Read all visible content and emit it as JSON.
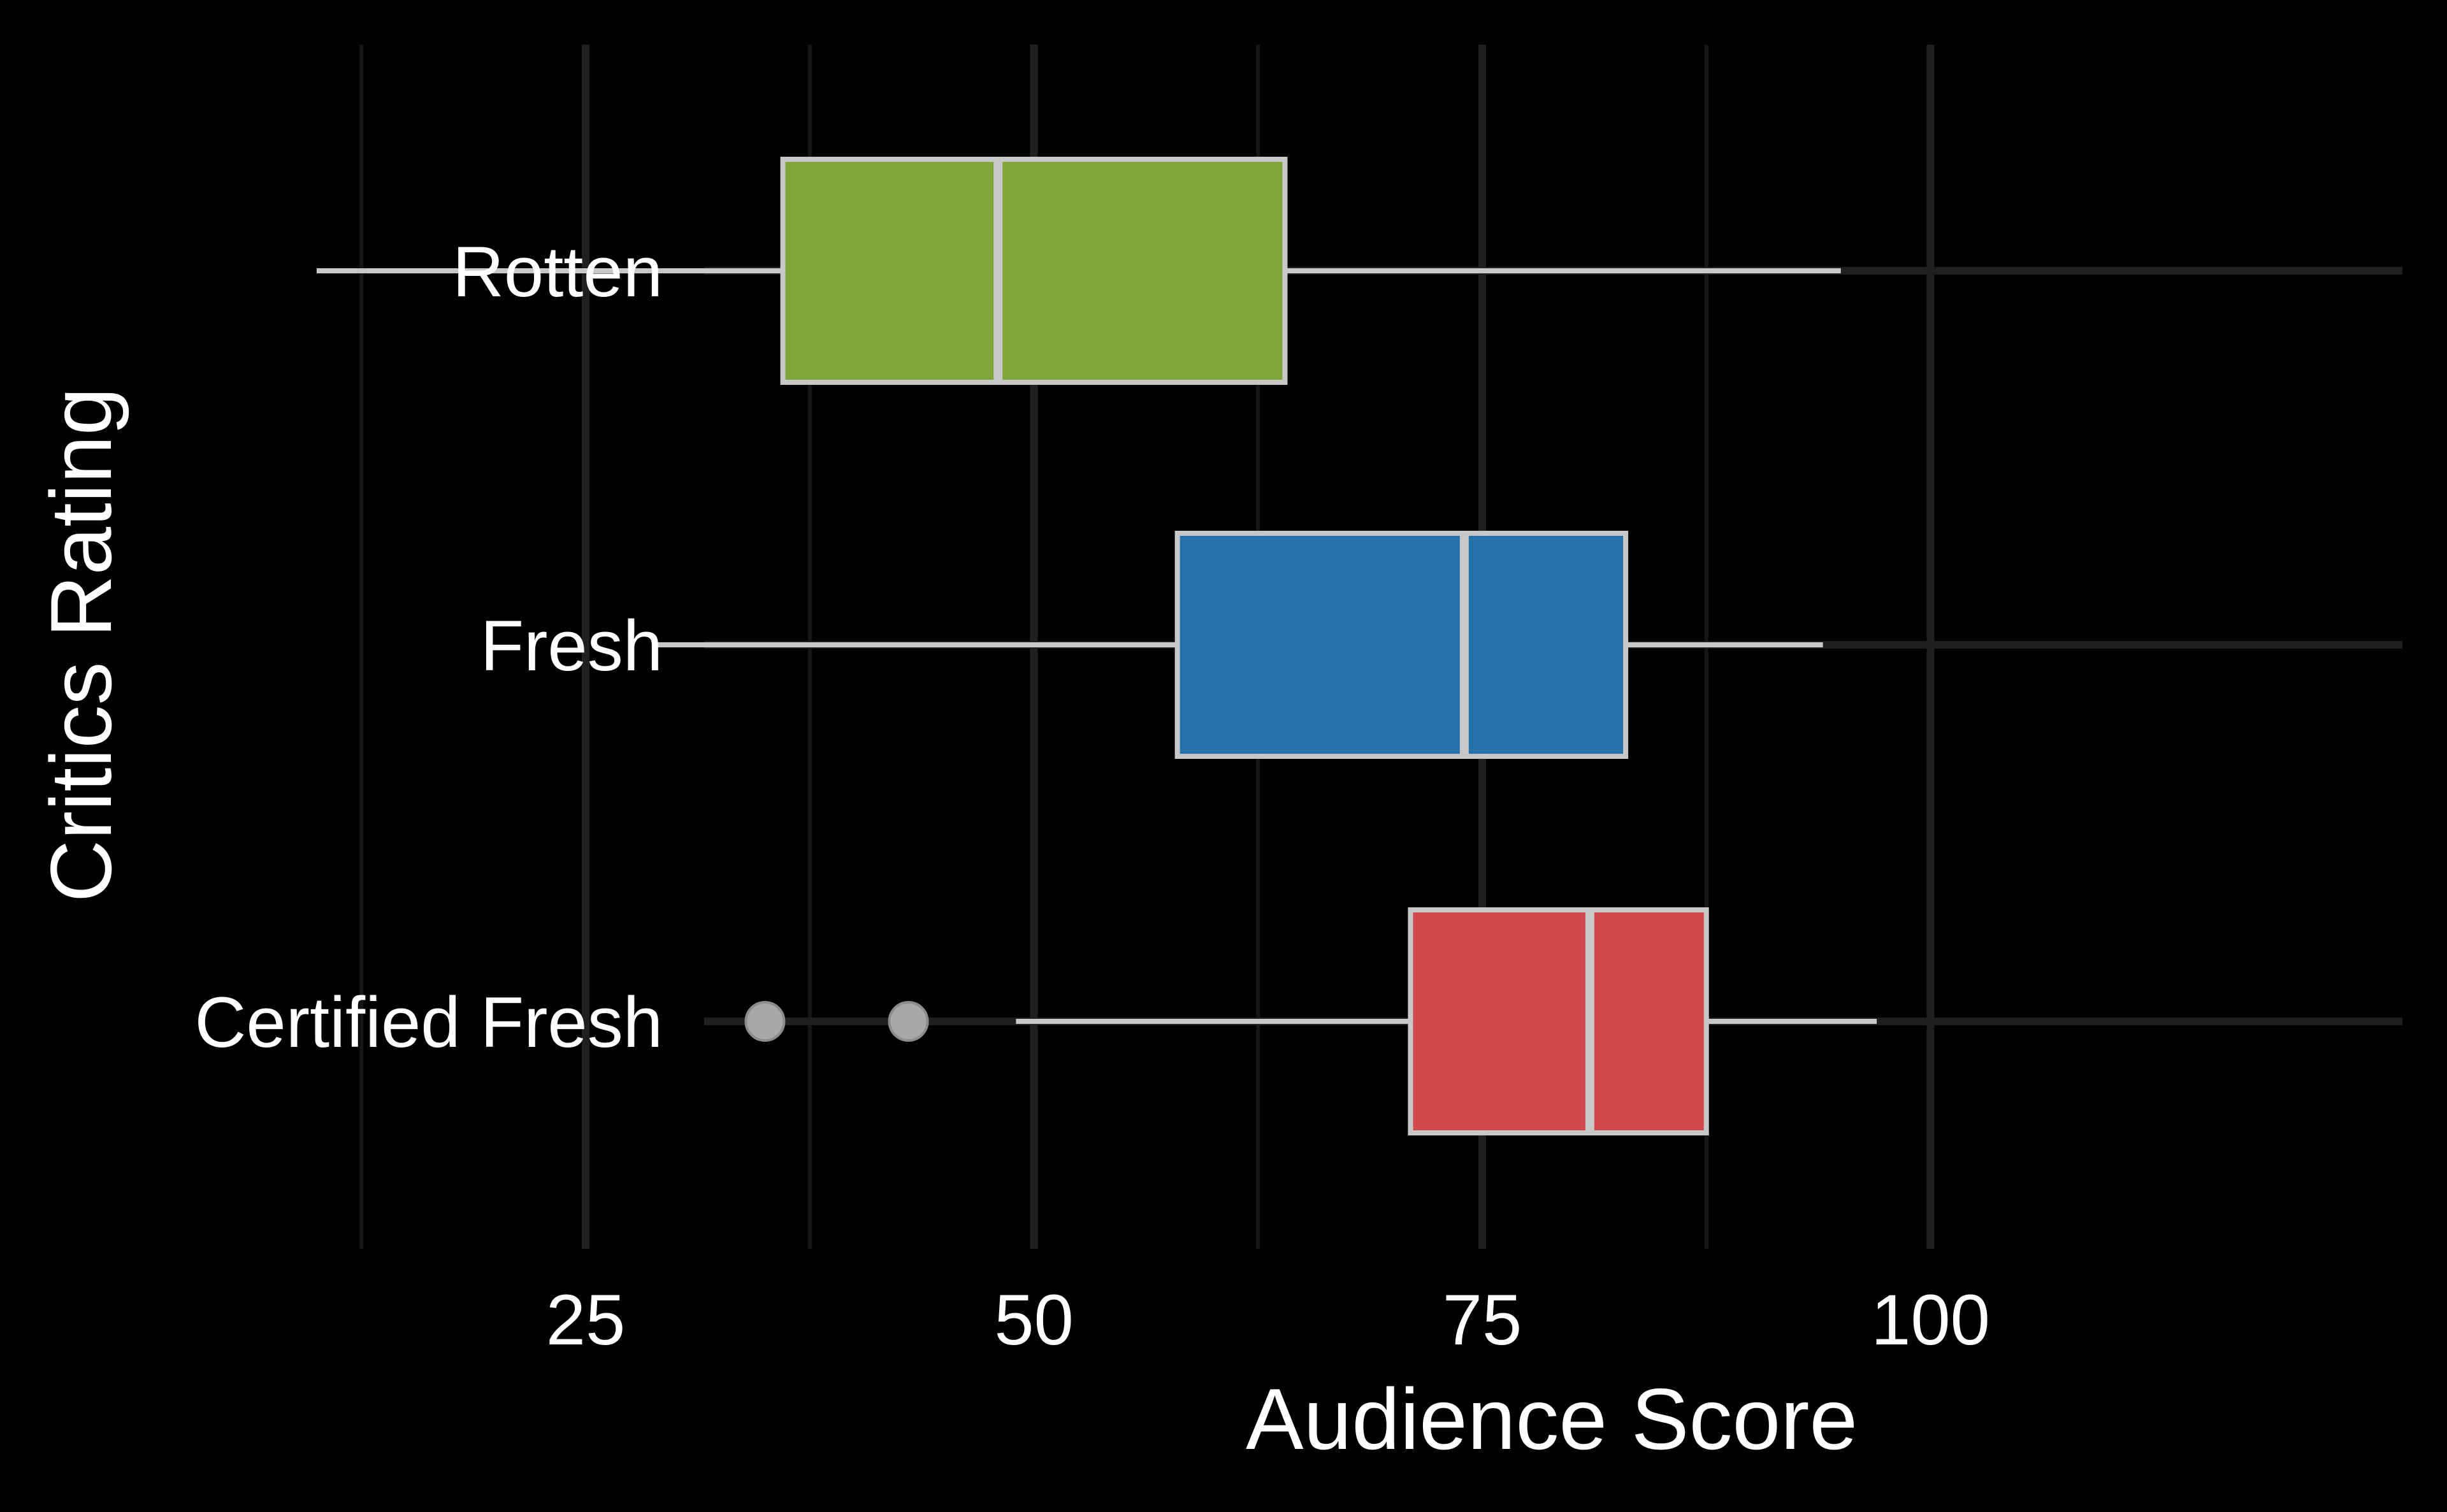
{
  "chart_data": {
    "type": "boxplot",
    "orientation": "horizontal",
    "xlabel": "Audience Score",
    "ylabel": "Critics Rating",
    "xlim": [
      5.5,
      101
    ],
    "x_ticks": [
      25,
      50,
      75,
      100
    ],
    "x_tick_labels": [
      "25",
      "50",
      "75",
      "100"
    ],
    "x_minor_gridlines": [
      12.5,
      37.5,
      62.5,
      87.5
    ],
    "grid": true,
    "legend": "none",
    "background": "#000000",
    "categories": [
      "Rotten",
      "Fresh",
      "Certified Fresh"
    ],
    "series": [
      {
        "category": "Rotten",
        "color": "#80a53a",
        "whisker_low": 10,
        "q1": 36,
        "median": 48,
        "q3": 64,
        "whisker_high": 95,
        "outliers": []
      },
      {
        "category": "Fresh",
        "color": "#2673ab",
        "whisker_low": 29,
        "q1": 58,
        "median": 74,
        "q3": 83,
        "whisker_high": 94,
        "outliers": []
      },
      {
        "category": "Certified Fresh",
        "color": "#d2484f",
        "whisker_low": 49,
        "q1": 71,
        "median": 81,
        "q3": 87.5,
        "whisker_high": 97,
        "outliers": [
          35,
          43
        ]
      }
    ]
  }
}
